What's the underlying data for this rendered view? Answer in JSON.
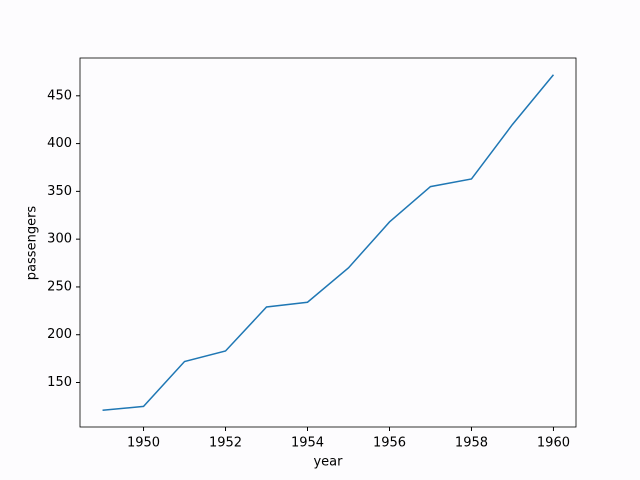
{
  "chart_data": {
    "type": "line",
    "x_label": "year",
    "y_label": "passengers",
    "x": [
      1949,
      1950,
      1951,
      1952,
      1953,
      1954,
      1955,
      1956,
      1957,
      1958,
      1959,
      1960
    ],
    "series": [
      {
        "name": "passengers",
        "color": "#1f77b4",
        "values": [
          121,
          125,
          172,
          183,
          229,
          234,
          270,
          318,
          355,
          363,
          420,
          472
        ]
      }
    ],
    "xlim": [
      1948.45,
      1960.55
    ],
    "xticks": [
      1950,
      1952,
      1954,
      1956,
      1958,
      1960
    ],
    "ylim": [
      103.45,
      489.55
    ],
    "yticks": [
      150,
      200,
      250,
      300,
      350,
      400,
      450
    ]
  }
}
